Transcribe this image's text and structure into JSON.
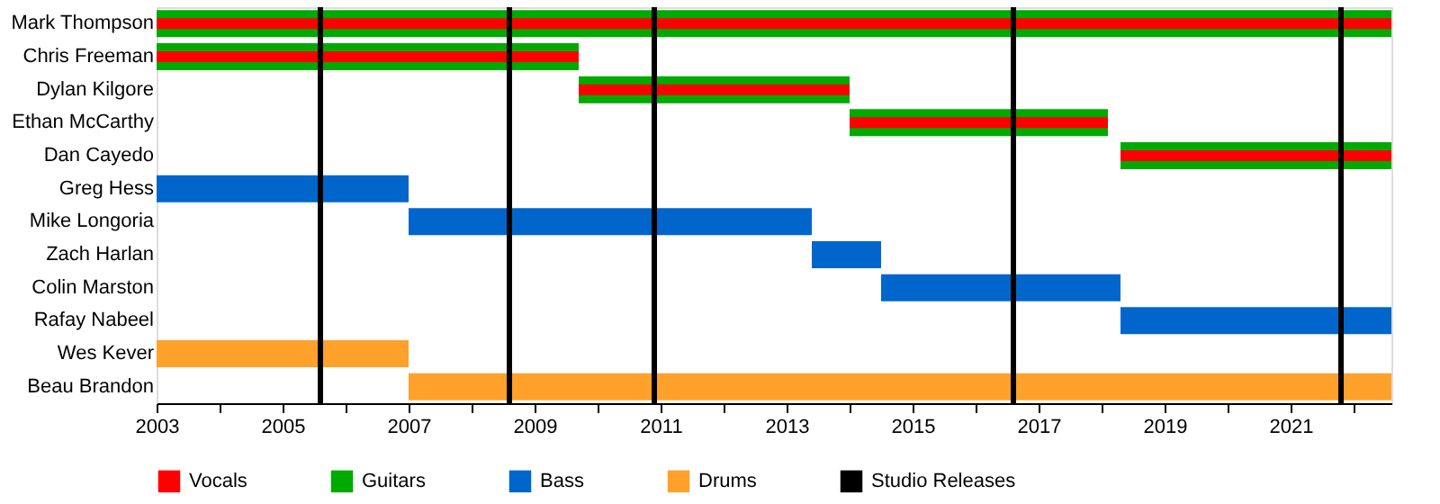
{
  "chart_data": {
    "type": "bar",
    "orientation": "horizontal",
    "categories": [
      "Mark Thompson",
      "Chris Freeman",
      "Dylan Kilgore",
      "Ethan McCarthy",
      "Dan Cayedo",
      "Greg Hess",
      "Mike Longoria",
      "Zach Harlan",
      "Colin Marston",
      "Rafay Nabeel",
      "Wes Kever",
      "Beau Brandon"
    ],
    "series": [
      {
        "name": "Vocals",
        "color": "#ff0000",
        "base": [
          2003,
          2003,
          2009.7,
          2014.0,
          2018.3,
          null,
          null,
          null,
          null,
          null,
          null,
          null
        ],
        "values": [
          19.6,
          6.7,
          4.3,
          4.1,
          4.3,
          null,
          null,
          null,
          null,
          null,
          null,
          null
        ]
      },
      {
        "name": "Guitars",
        "color": "#00aa00",
        "base": [
          2003,
          2003,
          2009.7,
          2014.0,
          2018.3,
          null,
          null,
          null,
          null,
          null,
          null,
          null
        ],
        "values": [
          19.6,
          6.7,
          4.3,
          4.1,
          4.3,
          null,
          null,
          null,
          null,
          null,
          null,
          null
        ]
      },
      {
        "name": "Bass",
        "color": "#0066cc",
        "base": [
          null,
          null,
          null,
          null,
          null,
          2003,
          2007.0,
          2013.4,
          2014.5,
          2018.3,
          null,
          null
        ],
        "values": [
          null,
          null,
          null,
          null,
          null,
          4.0,
          6.4,
          1.1,
          3.8,
          4.3,
          null,
          null
        ]
      },
      {
        "name": "Drums",
        "color": "#ffa12a",
        "base": [
          null,
          null,
          null,
          null,
          null,
          null,
          null,
          null,
          null,
          null,
          2003,
          2007.0
        ],
        "values": [
          null,
          null,
          null,
          null,
          null,
          null,
          null,
          null,
          null,
          null,
          4.0,
          15.6
        ]
      }
    ],
    "ref_lines": [
      {
        "axis": "x",
        "value": 2005.6,
        "label": "Studio Releases",
        "color": "#000000"
      },
      {
        "axis": "x",
        "value": 2008.6,
        "color": "#000000"
      },
      {
        "axis": "x",
        "value": 2010.9,
        "color": "#000000"
      },
      {
        "axis": "x",
        "value": 2016.6,
        "color": "#000000"
      },
      {
        "axis": "x",
        "value": 2021.8,
        "color": "#000000"
      }
    ],
    "xlim": [
      2003,
      2022.6
    ],
    "xticks": [
      2003,
      {
        "value": 2004,
        "label": null
      },
      2005,
      {
        "value": 2006,
        "label": null
      },
      2007,
      {
        "value": 2008,
        "label": null
      },
      2009,
      {
        "value": 2010,
        "label": null
      },
      2011,
      {
        "value": 2012,
        "label": null
      },
      2013,
      {
        "value": 2014,
        "label": null
      },
      2015,
      {
        "value": 2016,
        "label": null
      },
      2017,
      {
        "value": 2018,
        "label": null
      },
      2019,
      {
        "value": 2020,
        "label": null
      },
      2021,
      {
        "value": 2022,
        "label": null
      }
    ],
    "grid": false,
    "legend": "bottom"
  }
}
